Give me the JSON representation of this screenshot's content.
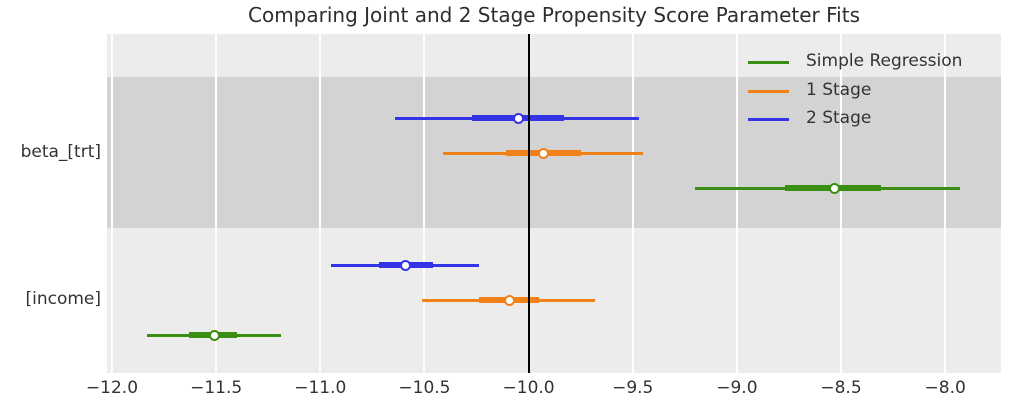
{
  "title": "Comparing Joint and 2 Stage Propensity Score Parameter Fits",
  "colors": {
    "band_light": "#ececec",
    "band_dark": "#d3d3d3",
    "gridline": "#ffffff",
    "ref_line": "#000000",
    "text": "#333333",
    "marker_fill": "#ffffff"
  },
  "chart_data": {
    "type": "forest",
    "title": "Comparing Joint and 2 Stage Propensity Score Parameter Fits",
    "xlim": [
      -12.024,
      -7.732
    ],
    "ref_line_x": -10.0,
    "grid": "on",
    "legend_position": "upper right",
    "x_axis": {
      "tick_values": [
        -12.0,
        -11.5,
        -11.0,
        -10.5,
        -10.0,
        -9.5,
        -9.0,
        -8.5,
        -8.0
      ],
      "tick_labels": [
        "−12.0",
        "−11.5",
        "−11.0",
        "−10.5",
        "−10.0",
        "−9.5",
        "−9.0",
        "−8.5",
        "−8.0"
      ]
    },
    "categories": [
      "beta_[trt]",
      "[income]"
    ],
    "series": [
      {
        "name": "Simple Regression",
        "color": "#3a8e11",
        "points": [
          {
            "category": "beta_[trt]",
            "estimate": -8.53,
            "ci_inner": [
              -8.77,
              -8.31
            ],
            "ci_outer": [
              -9.2,
              -7.93
            ]
          },
          {
            "category": "[income]",
            "estimate": -11.51,
            "ci_inner": [
              -11.63,
              -11.4
            ],
            "ci_outer": [
              -11.83,
              -11.19
            ]
          }
        ]
      },
      {
        "name": "1 Stage",
        "color": "#f28119",
        "points": [
          {
            "category": "beta_[trt]",
            "estimate": -9.93,
            "ci_inner": [
              -10.11,
              -9.75
            ],
            "ci_outer": [
              -10.41,
              -9.45
            ]
          },
          {
            "category": "[income]",
            "estimate": -10.09,
            "ci_inner": [
              -10.24,
              -9.95
            ],
            "ci_outer": [
              -10.51,
              -9.68
            ]
          }
        ]
      },
      {
        "name": "2 Stage",
        "color": "#3434e6",
        "points": [
          {
            "category": "beta_[trt]",
            "estimate": -10.05,
            "ci_inner": [
              -10.27,
              -9.83
            ],
            "ci_outer": [
              -10.64,
              -9.47
            ]
          },
          {
            "category": "[income]",
            "estimate": -10.59,
            "ci_inner": [
              -10.72,
              -10.46
            ],
            "ci_outer": [
              -10.95,
              -10.24
            ]
          }
        ]
      }
    ]
  }
}
